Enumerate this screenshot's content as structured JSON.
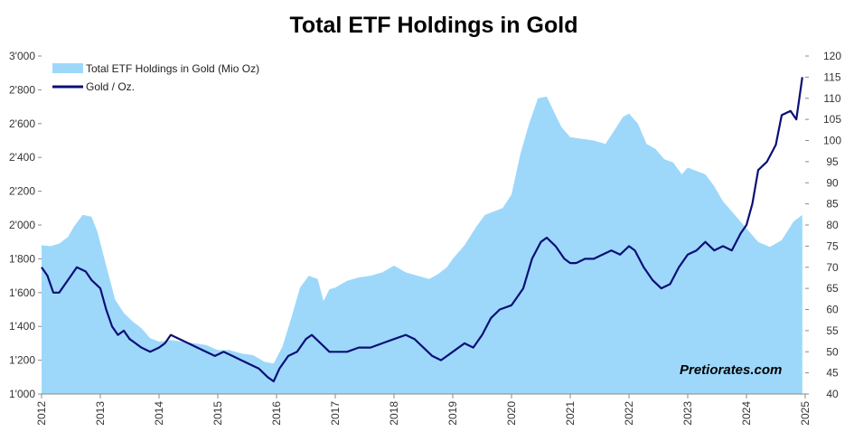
{
  "chart_data": {
    "type": "area",
    "title": "Total ETF Holdings in Gold",
    "watermark": "Pretiorates.com",
    "legend_placement": "top-left",
    "grid": false,
    "x_ticks": [
      "2012",
      "2013",
      "2014",
      "2015",
      "2016",
      "2017",
      "2018",
      "2019",
      "2020",
      "2021",
      "2022",
      "2023",
      "2024",
      "2025"
    ],
    "xlim": [
      2012,
      2025
    ],
    "y_left": {
      "lim": [
        1000,
        3000
      ],
      "ticks": [
        1000,
        1200,
        1400,
        1600,
        1800,
        2000,
        2200,
        2400,
        2600,
        2800,
        3000
      ],
      "tick_labels": [
        "1'000",
        "1'200",
        "1'400",
        "1'600",
        "1'800",
        "2'000",
        "2'200",
        "2'400",
        "2'600",
        "2'800",
        "3'000"
      ]
    },
    "y_right": {
      "lim": [
        40,
        120
      ],
      "ticks": [
        40,
        45,
        50,
        55,
        60,
        65,
        70,
        75,
        80,
        85,
        90,
        95,
        100,
        105,
        110,
        115,
        120
      ],
      "tick_labels": [
        "40",
        "45",
        "50",
        "55",
        "60",
        "65",
        "70",
        "75",
        "80",
        "85",
        "90",
        "95",
        "100",
        "105",
        "110",
        "115",
        "120"
      ]
    },
    "series": [
      {
        "name": "Total ETF Holdings in Gold (Mio Oz)",
        "kind": "area",
        "axis": "left",
        "color": "#9dd8fb",
        "x": [
          2012.0,
          2012.15,
          2012.3,
          2012.45,
          2012.55,
          2012.7,
          2012.85,
          2012.95,
          2013.1,
          2013.25,
          2013.4,
          2013.55,
          2013.7,
          2013.85,
          2014.0,
          2014.2,
          2014.4,
          2014.6,
          2014.8,
          2015.0,
          2015.2,
          2015.4,
          2015.6,
          2015.8,
          2015.95,
          2016.1,
          2016.25,
          2016.4,
          2016.55,
          2016.7,
          2016.8,
          2016.9,
          2017.0,
          2017.2,
          2017.4,
          2017.6,
          2017.8,
          2018.0,
          2018.2,
          2018.4,
          2018.6,
          2018.75,
          2018.9,
          2019.0,
          2019.2,
          2019.4,
          2019.55,
          2019.7,
          2019.85,
          2020.0,
          2020.15,
          2020.3,
          2020.45,
          2020.6,
          2020.75,
          2020.85,
          2021.0,
          2021.2,
          2021.4,
          2021.6,
          2021.75,
          2021.9,
          2022.0,
          2022.15,
          2022.3,
          2022.45,
          2022.6,
          2022.75,
          2022.9,
          2023.0,
          2023.15,
          2023.3,
          2023.45,
          2023.6,
          2023.75,
          2023.9,
          2024.0,
          2024.2,
          2024.4,
          2024.6,
          2024.8,
          2024.95
        ],
        "values": [
          1880,
          1875,
          1890,
          1930,
          1990,
          2060,
          2050,
          1960,
          1760,
          1560,
          1480,
          1430,
          1390,
          1330,
          1310,
          1320,
          1310,
          1300,
          1290,
          1260,
          1260,
          1240,
          1230,
          1190,
          1180,
          1280,
          1450,
          1630,
          1700,
          1680,
          1550,
          1620,
          1630,
          1670,
          1690,
          1700,
          1720,
          1760,
          1720,
          1700,
          1680,
          1710,
          1750,
          1800,
          1880,
          1990,
          2060,
          2080,
          2100,
          2180,
          2420,
          2600,
          2750,
          2760,
          2650,
          2580,
          2520,
          2510,
          2500,
          2480,
          2560,
          2640,
          2660,
          2600,
          2480,
          2450,
          2390,
          2370,
          2300,
          2340,
          2320,
          2300,
          2230,
          2140,
          2080,
          2020,
          1980,
          1900,
          1870,
          1910,
          2020,
          2060
        ],
        "_note": "x: years; values: Mio Oz"
      },
      {
        "name": "Gold / Oz.",
        "kind": "line",
        "axis": "right",
        "color": "#0b0f75",
        "x": [
          2012.0,
          2012.1,
          2012.2,
          2012.3,
          2012.45,
          2012.6,
          2012.75,
          2012.85,
          2013.0,
          2013.1,
          2013.2,
          2013.3,
          2013.4,
          2013.5,
          2013.6,
          2013.7,
          2013.85,
          2014.0,
          2014.1,
          2014.2,
          2014.35,
          2014.5,
          2014.65,
          2014.8,
          2014.95,
          2015.1,
          2015.25,
          2015.4,
          2015.55,
          2015.7,
          2015.85,
          2015.95,
          2016.05,
          2016.2,
          2016.35,
          2016.5,
          2016.6,
          2016.75,
          2016.9,
          2017.0,
          2017.2,
          2017.4,
          2017.6,
          2017.8,
          2018.0,
          2018.2,
          2018.35,
          2018.5,
          2018.65,
          2018.8,
          2019.0,
          2019.2,
          2019.35,
          2019.5,
          2019.65,
          2019.8,
          2020.0,
          2020.1,
          2020.2,
          2020.35,
          2020.5,
          2020.6,
          2020.75,
          2020.9,
          2021.0,
          2021.1,
          2021.25,
          2021.4,
          2021.55,
          2021.7,
          2021.85,
          2022.0,
          2022.1,
          2022.25,
          2022.4,
          2022.55,
          2022.7,
          2022.85,
          2023.0,
          2023.15,
          2023.3,
          2023.45,
          2023.6,
          2023.75,
          2023.9,
          2024.0,
          2024.1,
          2024.2,
          2024.35,
          2024.5,
          2024.6,
          2024.75,
          2024.85,
          2024.95
        ],
        "values": [
          70,
          68,
          64,
          64,
          67,
          70,
          69,
          67,
          65,
          60,
          56,
          54,
          55,
          53,
          52,
          51,
          50,
          51,
          52,
          54,
          53,
          52,
          51,
          50,
          49,
          50,
          49,
          48,
          47,
          46,
          44,
          43,
          46,
          49,
          50,
          53,
          54,
          52,
          50,
          50,
          50,
          51,
          51,
          52,
          53,
          54,
          53,
          51,
          49,
          48,
          50,
          52,
          51,
          54,
          58,
          60,
          61,
          63,
          65,
          72,
          76,
          77,
          75,
          72,
          71,
          71,
          72,
          72,
          73,
          74,
          73,
          75,
          74,
          70,
          67,
          65,
          66,
          70,
          73,
          74,
          76,
          74,
          75,
          74,
          78,
          80,
          85,
          93,
          95,
          99,
          106,
          107,
          105,
          115
        ],
        "_note": "x: years; values: right-axis units"
      }
    ]
  }
}
